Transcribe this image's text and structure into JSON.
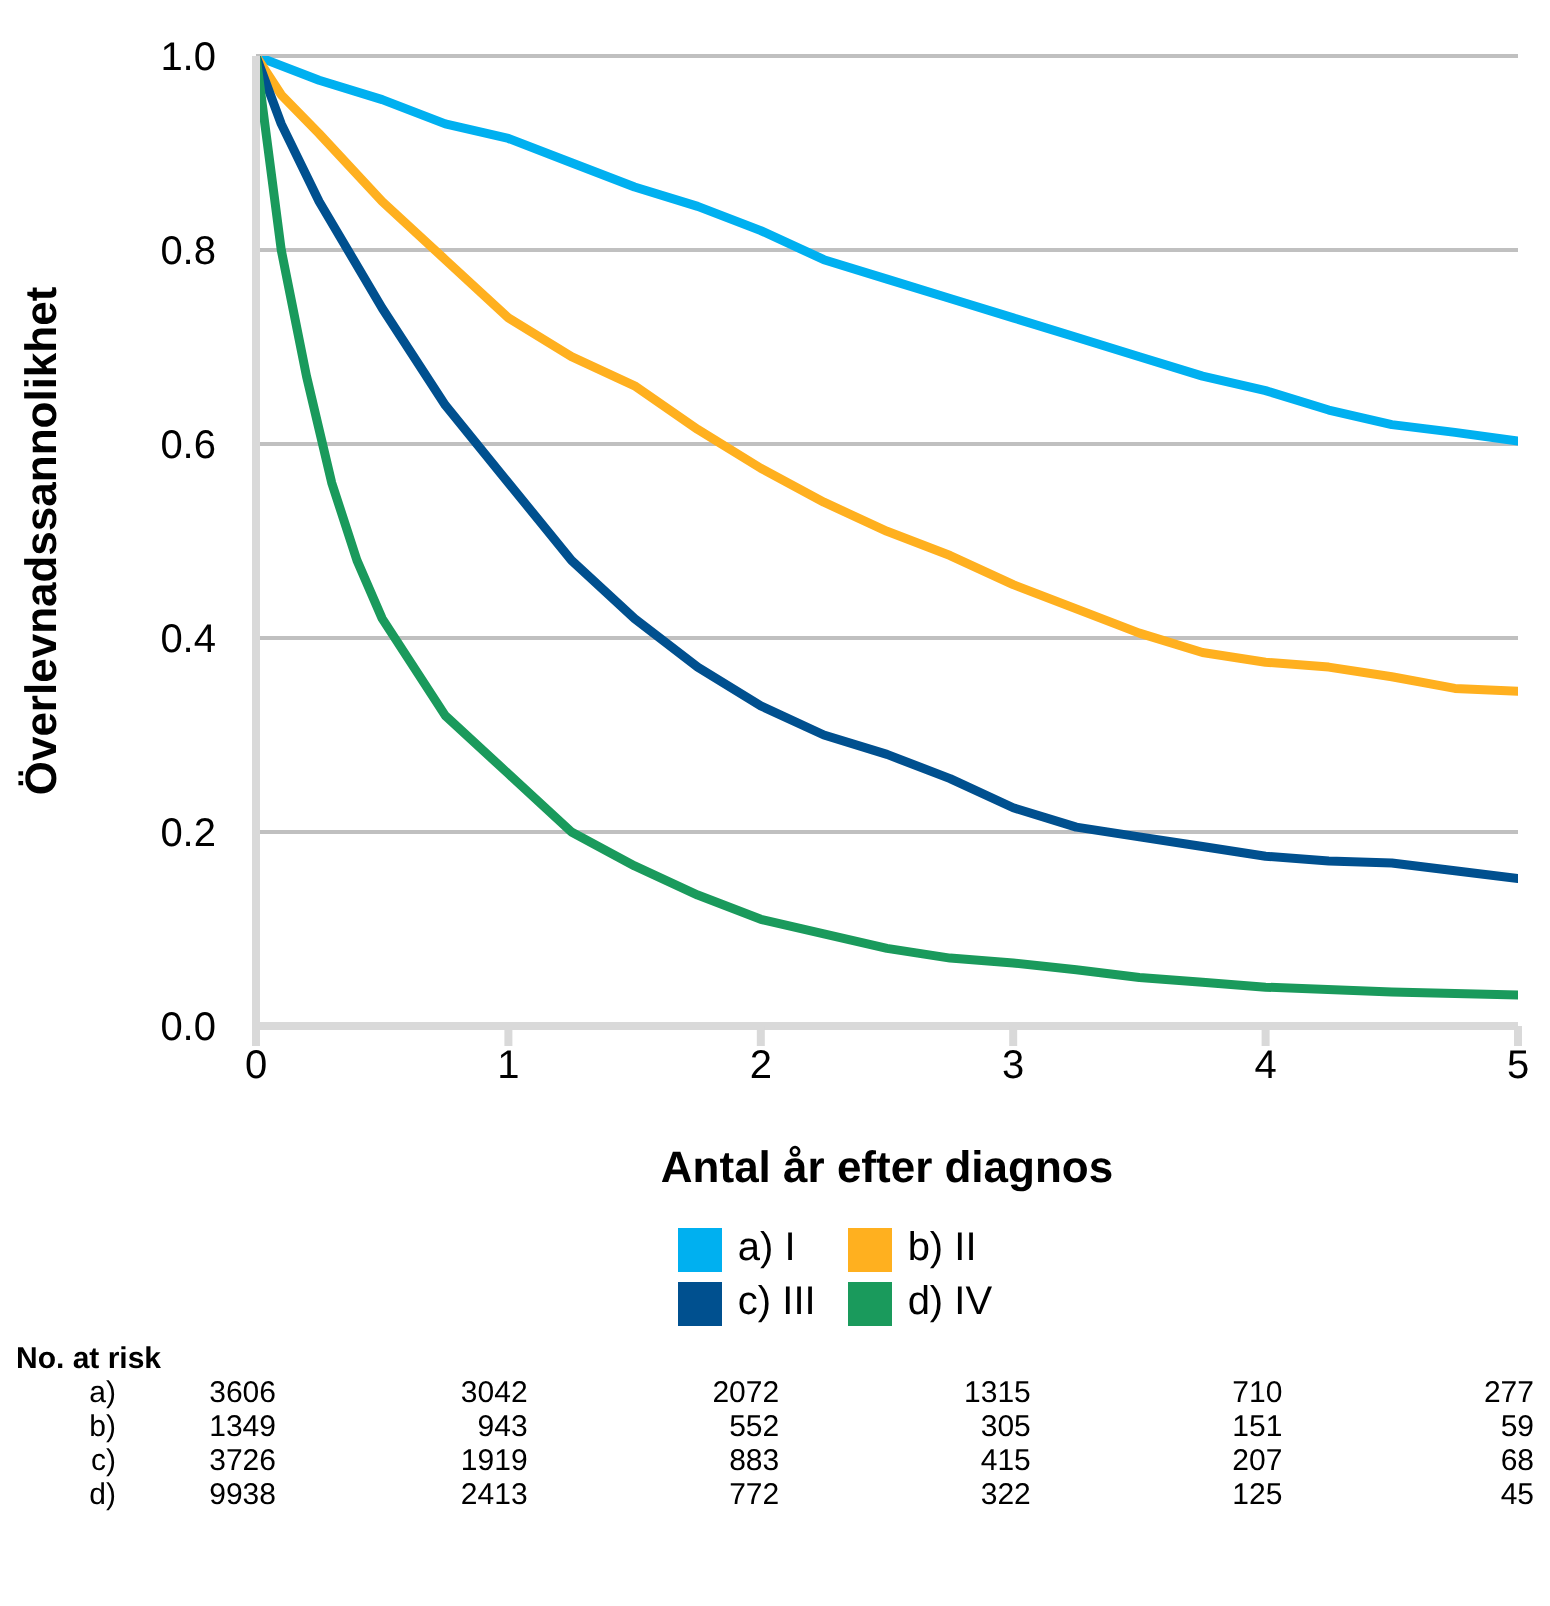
{
  "chart_data": {
    "type": "line",
    "xlabel": "Antal år efter diagnos",
    "ylabel": "Överlevnadssannolikhet",
    "xlim": [
      0,
      5
    ],
    "xticks": [
      0,
      1,
      2,
      3,
      4,
      5
    ],
    "ylim": [
      0,
      1
    ],
    "yticks": [
      {
        "value": 0,
        "label": "0.0"
      },
      {
        "value": 0.2,
        "label": "0.2"
      },
      {
        "value": 0.4,
        "label": "0.4"
      },
      {
        "value": 0.6,
        "label": "0.6"
      },
      {
        "value": 0.8,
        "label": "0.8"
      },
      {
        "value": 1,
        "label": "1.0"
      }
    ],
    "grid": "y",
    "legend": "bottom",
    "marker": "none",
    "line_style": "solid",
    "series": [
      {
        "name": "a) I",
        "color": "#00b0f0",
        "x": [
          0,
          0.25,
          0.5,
          0.75,
          1,
          1.25,
          1.5,
          1.75,
          2,
          2.25,
          2.5,
          2.75,
          3,
          3.25,
          3.5,
          3.75,
          4,
          4.25,
          4.5,
          4.75,
          5
        ],
        "values": [
          1,
          0.975,
          0.955,
          0.93,
          0.915,
          0.89,
          0.865,
          0.845,
          0.82,
          0.79,
          0.77,
          0.75,
          0.73,
          0.71,
          0.69,
          0.67,
          0.655,
          0.635,
          0.62,
          0.612,
          0.603
        ]
      },
      {
        "name": "b) II",
        "color": "#ffb01f",
        "x": [
          0,
          0.1,
          0.25,
          0.5,
          0.75,
          1,
          1.25,
          1.5,
          1.75,
          2,
          2.25,
          2.5,
          2.75,
          3,
          3.25,
          3.5,
          3.75,
          4,
          4.25,
          4.5,
          4.75,
          5
        ],
        "values": [
          1,
          0.96,
          0.92,
          0.85,
          0.79,
          0.73,
          0.69,
          0.66,
          0.615,
          0.575,
          0.54,
          0.51,
          0.485,
          0.455,
          0.43,
          0.405,
          0.385,
          0.375,
          0.37,
          0.36,
          0.348,
          0.345
        ]
      },
      {
        "name": "c) III",
        "color": "#00508f",
        "x": [
          0,
          0.1,
          0.25,
          0.5,
          0.75,
          1,
          1.25,
          1.5,
          1.75,
          2,
          2.25,
          2.5,
          2.75,
          3,
          3.25,
          3.5,
          3.75,
          4,
          4.25,
          4.5,
          4.75,
          5
        ],
        "values": [
          1,
          0.93,
          0.85,
          0.74,
          0.64,
          0.56,
          0.48,
          0.42,
          0.37,
          0.33,
          0.3,
          0.28,
          0.255,
          0.225,
          0.205,
          0.195,
          0.185,
          0.175,
          0.17,
          0.168,
          0.16,
          0.152
        ]
      },
      {
        "name": "d) IV",
        "color": "#1a9a5c",
        "x": [
          0,
          0.05,
          0.1,
          0.2,
          0.3,
          0.4,
          0.5,
          0.75,
          1,
          1.25,
          1.5,
          1.75,
          2,
          2.25,
          2.5,
          2.75,
          3,
          3.25,
          3.5,
          3.75,
          4,
          4.5,
          5
        ],
        "values": [
          1,
          0.9,
          0.8,
          0.67,
          0.56,
          0.48,
          0.42,
          0.32,
          0.26,
          0.2,
          0.165,
          0.135,
          0.11,
          0.095,
          0.08,
          0.07,
          0.065,
          0.058,
          0.05,
          0.045,
          0.04,
          0.035,
          0.032
        ]
      }
    ],
    "annotations": [
      "No. at risk",
      "a) 3606 3042 2072 1315 710 277",
      "b) 1349 943 552 305 151 59",
      "c) 3726 1919 883 415 207 68",
      "d) 9938 2413 772 322 125 45"
    ]
  }
}
